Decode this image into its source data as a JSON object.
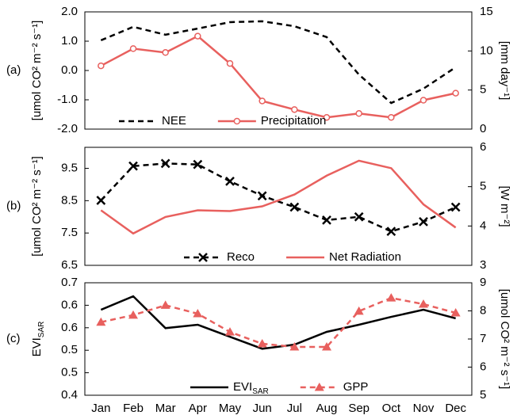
{
  "chart_data": [
    {
      "type": "line",
      "label": "(a)",
      "ylabel": "[umol CO² m⁻² s⁻¹]",
      "y2label": "[mm day⁻¹]",
      "ylim": [
        -2,
        2
      ],
      "yticks": [
        {
          "value": -2,
          "label": "-2.0"
        },
        {
          "value": -1,
          "label": "-1.0"
        },
        {
          "value": 0,
          "label": "0.0"
        },
        {
          "value": 1,
          "label": "1.0"
        },
        {
          "value": 2,
          "label": "2.0"
        }
      ],
      "y2lim": [
        0,
        15
      ],
      "y2ticks": [
        0,
        5,
        10,
        15
      ],
      "legend": "lower left",
      "series": [
        {
          "name": "NEE",
          "color": "#000000",
          "dash": true,
          "marker": "none",
          "values": [
            1.03,
            1.49,
            1.22,
            1.43,
            1.65,
            1.68,
            1.51,
            1.14,
            -0.14,
            -1.11,
            -0.62,
            0.11
          ]
        },
        {
          "name": "Precipitation",
          "color": "#e8605e",
          "dash": false,
          "marker": "circle",
          "axis": "y2",
          "values": [
            8.1,
            10.3,
            9.8,
            11.9,
            8.4,
            3.6,
            2.5,
            1.5,
            2.0,
            1.5,
            3.7,
            4.6
          ]
        }
      ]
    },
    {
      "type": "line",
      "label": "(b)",
      "ylabel": "[umol CO² m⁻² s⁻¹]",
      "y2label": "[W m⁻²]",
      "ylim": [
        6.5,
        10.15
      ],
      "yticks": [
        6.5,
        7.5,
        8.5,
        9.5
      ],
      "y2lim": [
        3,
        6
      ],
      "y2ticks": [
        3,
        4,
        5,
        6
      ],
      "legend": "lower center",
      "series": [
        {
          "name": "Reco",
          "color": "#000000",
          "dash": true,
          "marker": "x",
          "values": [
            8.51,
            9.57,
            9.65,
            9.62,
            9.1,
            8.65,
            8.3,
            7.9,
            8.0,
            7.55,
            7.85,
            8.3
          ]
        },
        {
          "name": "Net Radiation",
          "color": "#e8605e",
          "dash": false,
          "marker": "none",
          "axis": "y2",
          "values": [
            4.4,
            3.81,
            4.23,
            4.4,
            4.38,
            4.5,
            4.8,
            5.28,
            5.66,
            5.47,
            4.55,
            3.96
          ]
        }
      ]
    },
    {
      "type": "line",
      "label": "(c)",
      "categories": [
        "Jan",
        "Feb",
        "Mar",
        "Apr",
        "May",
        "Jun",
        "Jul",
        "Aug",
        "Sep",
        "Oct",
        "Nov",
        "Dec"
      ],
      "ylabel": "EVI",
      "ylabel_sub": "SAR",
      "y2label": "[umol CO² m⁻² s⁻¹]",
      "ylim": [
        0.4,
        0.7
      ],
      "yticks": [
        0.4,
        {
          "value": 0.46,
          "label": "0.5"
        },
        {
          "value": 0.52,
          "label": "0.5"
        },
        {
          "value": 0.58,
          "label": "0.6"
        },
        {
          "value": 0.64,
          "label": "0.6"
        },
        0.7
      ],
      "y2lim": [
        5,
        9
      ],
      "y2ticks": [
        5,
        6,
        7,
        8,
        9
      ],
      "legend": "lower right",
      "series": [
        {
          "name": "EVI",
          "name_sub": "SAR",
          "color": "#000000",
          "dash": false,
          "marker": "none",
          "values": [
            0.628,
            0.664,
            0.579,
            0.588,
            0.556,
            0.524,
            0.535,
            0.569,
            0.588,
            0.609,
            0.628,
            0.605
          ]
        },
        {
          "name": "GPP",
          "color": "#e8605e",
          "dash": true,
          "marker": "triangle",
          "axis": "y2",
          "values": [
            7.6,
            7.85,
            8.2,
            7.9,
            7.25,
            6.83,
            6.72,
            6.72,
            7.99,
            8.46,
            8.24,
            7.93
          ]
        }
      ]
    }
  ]
}
